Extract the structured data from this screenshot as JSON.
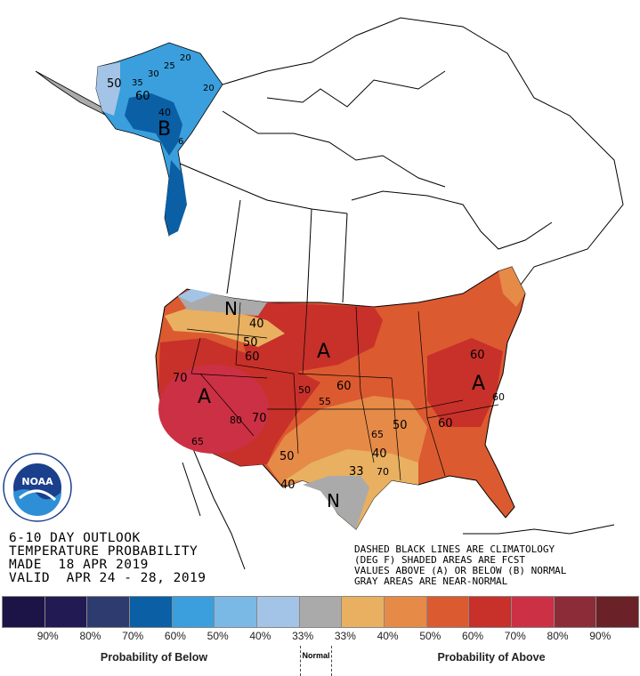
{
  "outlook": {
    "title_lines": [
      "6-10 DAY OUTLOOK",
      "TEMPERATURE PROBABILITY",
      "MADE  18 APR 2019",
      "VALID  APR 24 - 28, 2019"
    ],
    "note_lines": [
      "DASHED BLACK LINES ARE CLIMATOLOGY",
      "(DEG F) SHADED AREAS ARE FCST",
      "VALUES ABOVE (A) OR BELOW (B) NORMAL",
      "GRAY AREAS ARE NEAR-NORMAL"
    ]
  },
  "logo": {
    "text": "NOAA",
    "ring_text": "NATIONAL OCEANIC AND ATMOSPHERIC ADMINISTRATION · U.S. DEPARTMENT OF COMMERCE"
  },
  "map_labels": {
    "alaska": {
      "category": "B",
      "contours": [
        "60",
        "40",
        "50",
        "35",
        "30",
        "25",
        "20",
        "20",
        "6"
      ]
    },
    "conus": {
      "near_normal_nw": "N",
      "near_normal_tx": "N",
      "above_sw": "A",
      "above_plains": "A",
      "above_east": "A",
      "contours": [
        "40",
        "50",
        "60",
        "70",
        "80",
        "65",
        "70",
        "50",
        "55",
        "60",
        "50",
        "65",
        "40",
        "33",
        "70",
        "40",
        "50",
        "60",
        "60",
        "60"
      ]
    }
  },
  "legend": {
    "colors": [
      "#1c1446",
      "#221a52",
      "#2e3b6e",
      "#0a5fa5",
      "#3a9fdc",
      "#7ab8e6",
      "#a3c4e6",
      "#aaaaaa",
      "#e8b060",
      "#e68a48",
      "#dc5a30",
      "#c8302a",
      "#cc3044",
      "#8c2c38",
      "#6a2228"
    ],
    "labels": [
      "90%",
      "80%",
      "70%",
      "60%",
      "50%",
      "40%",
      "33%",
      "33%",
      "40%",
      "50%",
      "60%",
      "70%",
      "80%",
      "90%"
    ],
    "below_caption": "Probability of Below",
    "normal_caption": "Normal",
    "above_caption": "Probability of Above"
  }
}
